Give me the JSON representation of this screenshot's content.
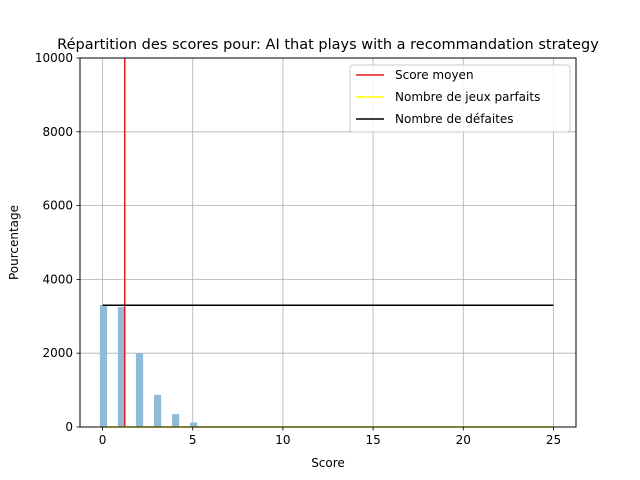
{
  "chart_data": {
    "type": "bar",
    "title": "Répartition des scores pour: AI that plays with a recommandation strategy",
    "xlabel": "Score",
    "ylabel": "Pourcentage",
    "xlim": [
      -1.25,
      26.25
    ],
    "ylim": [
      0,
      10000
    ],
    "xticks": [
      "0",
      "5",
      "10",
      "15",
      "20",
      "25"
    ],
    "yticks": [
      "0",
      "2000",
      "4000",
      "6000",
      "8000",
      "10000"
    ],
    "xtick_values": [
      0,
      5,
      10,
      15,
      20,
      25
    ],
    "ytick_values": [
      0,
      2000,
      4000,
      6000,
      8000,
      10000
    ],
    "grid": true,
    "legend_position": "top-right",
    "bar_color": "#8fbbd9",
    "bars": [
      {
        "x": 0,
        "value": 3300
      },
      {
        "x": 1,
        "value": 3250
      },
      {
        "x": 2,
        "value": 2000
      },
      {
        "x": 3,
        "value": 870
      },
      {
        "x": 4,
        "value": 350
      },
      {
        "x": 5,
        "value": 120
      },
      {
        "x": 6,
        "value": 0
      },
      {
        "x": 7,
        "value": 0
      },
      {
        "x": 8,
        "value": 0
      },
      {
        "x": 9,
        "value": 0
      },
      {
        "x": 10,
        "value": 0
      },
      {
        "x": 11,
        "value": 0
      },
      {
        "x": 12,
        "value": 0
      },
      {
        "x": 13,
        "value": 0
      },
      {
        "x": 14,
        "value": 0
      },
      {
        "x": 15,
        "value": 0
      },
      {
        "x": 16,
        "value": 0
      },
      {
        "x": 17,
        "value": 0
      },
      {
        "x": 18,
        "value": 0
      },
      {
        "x": 19,
        "value": 0
      },
      {
        "x": 20,
        "value": 0
      },
      {
        "x": 21,
        "value": 0
      },
      {
        "x": 22,
        "value": 0
      },
      {
        "x": 23,
        "value": 0
      },
      {
        "x": 24,
        "value": 0
      },
      {
        "x": 25,
        "value": 0
      }
    ],
    "lines": [
      {
        "name": "Score moyen",
        "color": "#e41a1c",
        "orientation": "vertical",
        "x": 1.23,
        "y_range": [
          0,
          10000
        ]
      },
      {
        "name": "Nombre de jeux parfaits",
        "color": "#ffff00",
        "orientation": "horizontal",
        "y": 0,
        "x_range": [
          0,
          25
        ]
      },
      {
        "name": "Nombre de défaites",
        "color": "#000000",
        "orientation": "horizontal",
        "y": 3300,
        "x_range": [
          0,
          25
        ]
      }
    ]
  }
}
